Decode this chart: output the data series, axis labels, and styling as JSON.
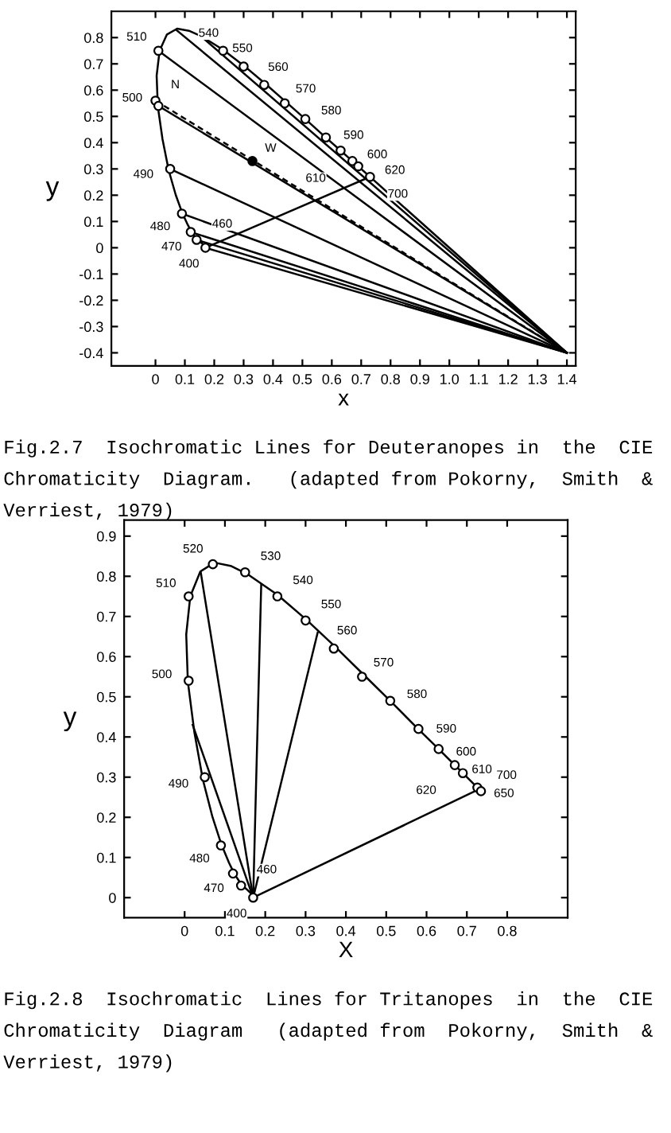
{
  "chart_data": [
    {
      "type": "line",
      "xlabel": "x",
      "ylabel": "y",
      "xlim": [
        -0.15,
        1.43
      ],
      "ylim": [
        -0.45,
        0.9
      ],
      "xticks": [
        0,
        0.1,
        0.2,
        0.3,
        0.4,
        0.5,
        0.6,
        0.7,
        0.8,
        0.9,
        {
          "value": 1.0,
          "label": "1.0"
        },
        1.1,
        1.2,
        1.3,
        1.4
      ],
      "yticks": [
        -0.4,
        -0.3,
        -0.2,
        -0.1,
        0,
        0.1,
        0.2,
        0.3,
        0.4,
        0.5,
        0.6,
        0.7,
        0.8
      ],
      "series": [
        {
          "type": "line",
          "color": "#000000",
          "x": [
            0.173,
            0.171,
            0.169,
            0.164,
            0.157,
            0.144,
            0.136,
            0.124,
            0.11,
            0.091,
            0.069,
            0.045,
            0.024,
            0.008,
            0.004,
            0.014,
            0.039,
            0.074,
            0.114,
            0.155,
            0.23,
            0.302,
            0.373,
            0.444,
            0.513,
            0.575,
            0.627,
            0.666,
            0.692,
            0.726,
            0.735
          ],
          "values": [
            0.005,
            0.005,
            0.007,
            0.011,
            0.018,
            0.03,
            0.04,
            0.058,
            0.087,
            0.133,
            0.201,
            0.295,
            0.413,
            0.538,
            0.655,
            0.75,
            0.812,
            0.834,
            0.826,
            0.806,
            0.754,
            0.692,
            0.625,
            0.555,
            0.487,
            0.424,
            0.373,
            0.334,
            0.308,
            0.274,
            0.265
          ]
        },
        {
          "type": "line",
          "color": "#000000",
          "x": [
            0.17,
            0.73
          ],
          "values": [
            0.0,
            0.27
          ]
        },
        {
          "type": "line",
          "color": "#000000",
          "x": [
            0.15,
            1.4
          ],
          "values": [
            0.81,
            -0.4
          ]
        },
        {
          "type": "line",
          "color": "#000000",
          "x": [
            0.07,
            1.4
          ],
          "values": [
            0.83,
            -0.4
          ]
        },
        {
          "type": "line",
          "color": "#000000",
          "x": [
            0.01,
            1.4
          ],
          "values": [
            0.75,
            -0.4
          ]
        },
        {
          "type": "line",
          "color": "#000000",
          "line_style": "dashed",
          "x": [
            0.0,
            1.4
          ],
          "values": [
            0.56,
            -0.4
          ]
        },
        {
          "type": "line",
          "color": "#000000",
          "x": [
            0.01,
            1.4
          ],
          "values": [
            0.54,
            -0.4
          ]
        },
        {
          "type": "line",
          "color": "#000000",
          "x": [
            0.05,
            1.4
          ],
          "values": [
            0.3,
            -0.4
          ]
        },
        {
          "type": "line",
          "color": "#000000",
          "x": [
            0.09,
            1.4
          ],
          "values": [
            0.13,
            -0.4
          ]
        },
        {
          "type": "line",
          "color": "#000000",
          "x": [
            0.12,
            1.4
          ],
          "values": [
            0.06,
            -0.4
          ]
        },
        {
          "type": "line",
          "color": "#000000",
          "x": [
            0.14,
            1.4
          ],
          "values": [
            0.03,
            -0.4
          ]
        },
        {
          "type": "line",
          "color": "#000000",
          "x": [
            0.17,
            1.4
          ],
          "values": [
            0.0,
            -0.4
          ]
        },
        {
          "type": "line",
          "color": "#000000",
          "x": [
            0.73,
            1.4
          ],
          "values": [
            0.27,
            -0.4
          ]
        },
        {
          "type": "scatter",
          "color": "#ffffff",
          "marker": "circle",
          "x": [
            0.01,
            0.23,
            0.3,
            0.37,
            0.44,
            0.51,
            0.58,
            0.63,
            0.67,
            0.69,
            0.73,
            0.0,
            0.01,
            0.05,
            0.09,
            0.12,
            0.14,
            0.17
          ],
          "values": [
            0.75,
            0.75,
            0.69,
            0.62,
            0.55,
            0.49,
            0.42,
            0.37,
            0.33,
            0.31,
            0.27,
            0.56,
            0.54,
            0.3,
            0.13,
            0.06,
            0.03,
            0.0
          ]
        },
        {
          "type": "scatter",
          "color": "#000000",
          "marker": "circle",
          "x": [
            0.33
          ],
          "values": [
            0.33
          ]
        }
      ],
      "annotations": [
        {
          "text": "510",
          "x": 0.01,
          "y": 0.75
        },
        {
          "text": "540",
          "x": 0.23,
          "y": 0.75
        },
        {
          "text": "550",
          "x": 0.3,
          "y": 0.69
        },
        {
          "text": "560",
          "x": 0.37,
          "y": 0.62
        },
        {
          "text": "570",
          "x": 0.44,
          "y": 0.55
        },
        {
          "text": "580",
          "x": 0.51,
          "y": 0.49
        },
        {
          "text": "590",
          "x": 0.58,
          "y": 0.42
        },
        {
          "text": "600",
          "x": 0.63,
          "y": 0.37
        },
        {
          "text": "610",
          "x": 0.67,
          "y": 0.33
        },
        {
          "text": "620",
          "x": 0.69,
          "y": 0.31
        },
        {
          "text": "700",
          "x": 0.73,
          "y": 0.27
        },
        {
          "text": "500",
          "x": 0.01,
          "y": 0.54
        },
        {
          "text": "490",
          "x": 0.05,
          "y": 0.3
        },
        {
          "text": "480",
          "x": 0.09,
          "y": 0.13
        },
        {
          "text": "470",
          "x": 0.12,
          "y": 0.06
        },
        {
          "text": "460",
          "x": 0.14,
          "y": 0.03
        },
        {
          "text": "400",
          "x": 0.17,
          "y": 0.0
        },
        {
          "text": "N",
          "x": 0.0,
          "y": 0.56
        },
        {
          "text": "W",
          "x": 0.33,
          "y": 0.33
        },
        "Fig.2.7  Isochromatic Lines for Deuteranopes in  the  CIE Chromaticity  Diagram.   (adapted from Pokorny,  Smith  & Verriest, 1979)"
      ]
    },
    {
      "type": "line",
      "xlabel": "X",
      "ylabel": "y",
      "xlim": [
        -0.15,
        0.95
      ],
      "ylim": [
        -0.05,
        0.94
      ],
      "xticks": [
        0,
        0.1,
        0.2,
        0.3,
        0.4,
        0.5,
        0.6,
        0.7,
        0.8
      ],
      "yticks": [
        0,
        0.1,
        0.2,
        0.3,
        0.4,
        0.5,
        0.6,
        0.7,
        0.8,
        0.9
      ],
      "series": [
        {
          "type": "line",
          "color": "#000000",
          "x": [
            0.173,
            0.171,
            0.169,
            0.164,
            0.157,
            0.144,
            0.136,
            0.124,
            0.11,
            0.091,
            0.069,
            0.045,
            0.024,
            0.008,
            0.004,
            0.014,
            0.039,
            0.074,
            0.114,
            0.155,
            0.23,
            0.302,
            0.373,
            0.444,
            0.513,
            0.575,
            0.627,
            0.666,
            0.692,
            0.726,
            0.735
          ],
          "values": [
            0.005,
            0.005,
            0.007,
            0.011,
            0.018,
            0.03,
            0.04,
            0.058,
            0.087,
            0.133,
            0.201,
            0.295,
            0.413,
            0.538,
            0.655,
            0.75,
            0.812,
            0.834,
            0.826,
            0.806,
            0.754,
            0.692,
            0.625,
            0.555,
            0.487,
            0.424,
            0.373,
            0.334,
            0.308,
            0.274,
            0.265
          ]
        },
        {
          "type": "line",
          "color": "#000000",
          "x": [
            0.17,
            0.73
          ],
          "values": [
            0.0,
            0.27
          ]
        },
        {
          "type": "line",
          "color": "#000000",
          "x": [
            0.17,
            0.04
          ],
          "values": [
            0.0,
            0.81
          ]
        },
        {
          "type": "line",
          "color": "#000000",
          "x": [
            0.17,
            0.19
          ],
          "values": [
            0.0,
            0.78
          ]
        },
        {
          "type": "line",
          "color": "#000000",
          "x": [
            0.17,
            0.33
          ],
          "values": [
            0.0,
            0.66
          ]
        },
        {
          "type": "line",
          "color": "#000000",
          "x": [
            0.17,
            0.02
          ],
          "values": [
            0.0,
            0.43
          ]
        },
        {
          "type": "scatter",
          "color": "#ffffff",
          "marker": "circle",
          "x": [
            0.07,
            0.15,
            0.23,
            0.3,
            0.37,
            0.44,
            0.51,
            0.58,
            0.63,
            0.67,
            0.69,
            0.726,
            0.735,
            0.01,
            0.01,
            0.05,
            0.09,
            0.12,
            0.14,
            0.17
          ],
          "values": [
            0.83,
            0.81,
            0.75,
            0.69,
            0.62,
            0.55,
            0.49,
            0.42,
            0.37,
            0.33,
            0.31,
            0.274,
            0.265,
            0.75,
            0.54,
            0.3,
            0.13,
            0.06,
            0.03,
            0.0
          ]
        }
      ],
      "annotations": [
        {
          "text": "520",
          "x": 0.07,
          "y": 0.83
        },
        {
          "text": "530",
          "x": 0.15,
          "y": 0.81
        },
        {
          "text": "540",
          "x": 0.23,
          "y": 0.75
        },
        {
          "text": "550",
          "x": 0.3,
          "y": 0.69
        },
        {
          "text": "560",
          "x": 0.37,
          "y": 0.62
        },
        {
          "text": "570",
          "x": 0.44,
          "y": 0.55
        },
        {
          "text": "580",
          "x": 0.51,
          "y": 0.49
        },
        {
          "text": "590",
          "x": 0.58,
          "y": 0.42
        },
        {
          "text": "600",
          "x": 0.63,
          "y": 0.37
        },
        {
          "text": "610",
          "x": 0.67,
          "y": 0.33
        },
        {
          "text": "620",
          "x": 0.69,
          "y": 0.31
        },
        {
          "text": "650",
          "x": 0.726,
          "y": 0.274
        },
        {
          "text": "700",
          "x": 0.735,
          "y": 0.265
        },
        {
          "text": "510",
          "x": 0.01,
          "y": 0.75
        },
        {
          "text": "500",
          "x": 0.01,
          "y": 0.54
        },
        {
          "text": "490",
          "x": 0.05,
          "y": 0.3
        },
        {
          "text": "480",
          "x": 0.09,
          "y": 0.13
        },
        {
          "text": "470",
          "x": 0.12,
          "y": 0.06
        },
        {
          "text": "460",
          "x": 0.14,
          "y": 0.03
        },
        {
          "text": "400",
          "x": 0.17,
          "y": 0.0
        },
        "Fig.2.8  Isochromatic  Lines for Tritanopes  in  the  CIE Chromaticity  Diagram   (adapted from  Pokorny,  Smith  & Verriest, 1979)"
      ]
    }
  ]
}
